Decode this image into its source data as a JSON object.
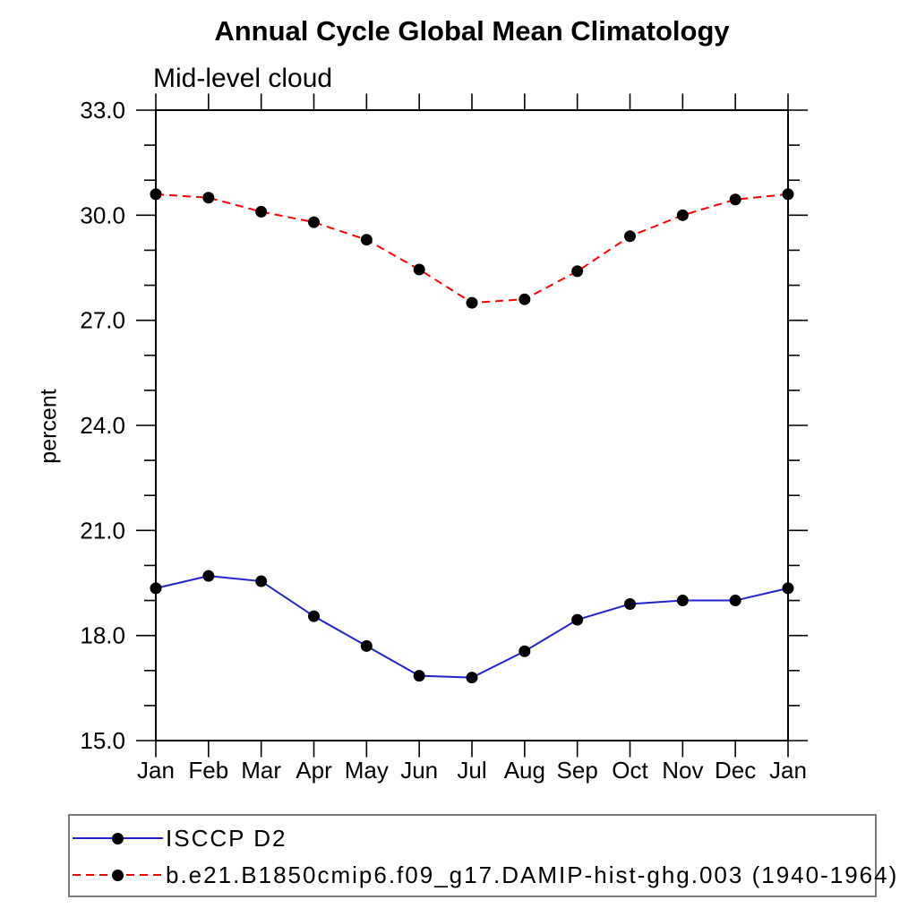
{
  "page": {
    "background": "#ffffff"
  },
  "chart_data": {
    "type": "line",
    "title": "Annual Cycle Global Mean Climatology",
    "subtitle": "Mid-level cloud",
    "ylabel": "percent",
    "xlabel": "",
    "categories": [
      "Jan",
      "Feb",
      "Mar",
      "Apr",
      "May",
      "Jun",
      "Jul",
      "Aug",
      "Sep",
      "Oct",
      "Nov",
      "Dec",
      "Jan"
    ],
    "ylim": [
      15.0,
      33.0
    ],
    "ytick_major": [
      15,
      18,
      21,
      24,
      27,
      30,
      33
    ],
    "ytick_major_labels": [
      "15.0",
      "18.0",
      "21.0",
      "24.0",
      "27.0",
      "30.0",
      "33.0"
    ],
    "ytick_minor_step": 1.0,
    "grid": false,
    "frame": "box-with-outward-ticks",
    "legend_position": "bottom",
    "colors": {
      "axis": "#000000",
      "series1": "#2222cc",
      "series2": "#ff0000",
      "marker": "#000000",
      "legend_border": "#7a7a7a"
    },
    "series": [
      {
        "name": "ISCCP D2",
        "line_style": "solid",
        "line_color": "#2222cc",
        "marker": "filled-circle",
        "marker_color": "#000000",
        "values": [
          19.35,
          19.7,
          19.55,
          18.55,
          17.7,
          16.85,
          16.8,
          17.55,
          18.45,
          18.9,
          19.0,
          19.0,
          19.35
        ]
      },
      {
        "name": "b.e21.B1850cmip6.f09_g17.DAMIP-hist-ghg.003 (1940-1964)",
        "line_style": "dashed",
        "line_color": "#ff0000",
        "marker": "filled-circle",
        "marker_color": "#000000",
        "values": [
          30.6,
          30.5,
          30.1,
          29.8,
          29.3,
          28.45,
          27.5,
          27.6,
          28.4,
          29.4,
          30.0,
          30.45,
          30.6
        ]
      }
    ]
  },
  "legend": {
    "entries": [
      {
        "label": "ISCCP D2",
        "style": "solid"
      },
      {
        "label": "b.e21.B1850cmip6.f09_g17.DAMIP-hist-ghg.003 (1940-1964)",
        "style": "dashed"
      }
    ]
  }
}
